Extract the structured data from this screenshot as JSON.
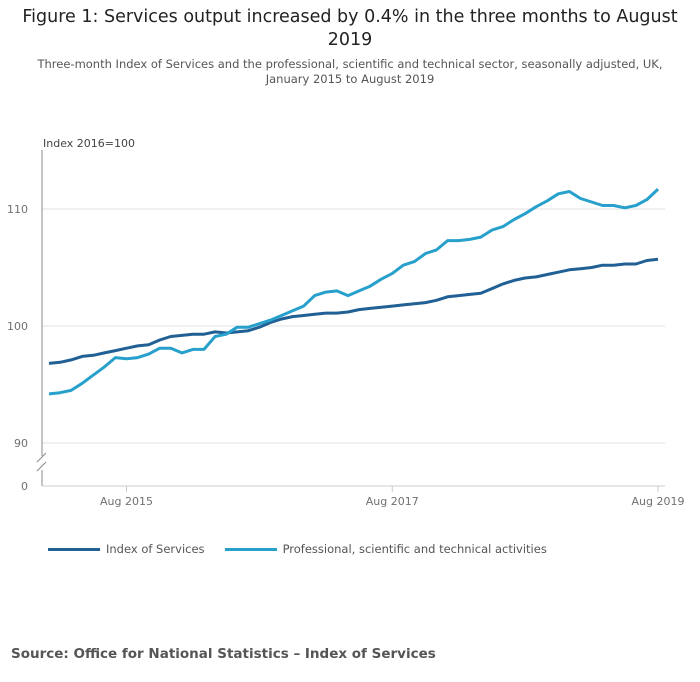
{
  "title": "Figure 1: Services output increased by 0.4% in the three months to August 2019",
  "subtitle": "Three-month Index of Services and the professional, scientific and technical sector, seasonally adjusted, UK, January 2015 to August 2019",
  "source": "Source: Office for National Statistics – Index of Services",
  "chart_data": {
    "type": "line",
    "ylabel": "Index 2016=100",
    "x_start": "Jan 2015",
    "x_end": "Aug 2019",
    "frequency": "monthly",
    "x_ticks": [
      "Aug 2015",
      "Aug 2017",
      "Aug 2019"
    ],
    "y_ticks": [
      0,
      90,
      100,
      110
    ],
    "ylim": [
      88,
      115
    ],
    "y_axis_break": true,
    "grid": true,
    "legend": "bottom-left",
    "series": [
      {
        "name": "Index of Services",
        "color": "#206095",
        "values": [
          96.8,
          96.9,
          97.1,
          97.4,
          97.5,
          97.7,
          97.9,
          98.1,
          98.3,
          98.4,
          98.8,
          99.1,
          99.2,
          99.3,
          99.3,
          99.5,
          99.4,
          99.5,
          99.6,
          99.9,
          100.3,
          100.6,
          100.8,
          100.9,
          101.0,
          101.1,
          101.1,
          101.2,
          101.4,
          101.5,
          101.6,
          101.7,
          101.8,
          101.9,
          102.0,
          102.2,
          102.5,
          102.6,
          102.7,
          102.8,
          103.2,
          103.6,
          103.9,
          104.1,
          104.2,
          104.4,
          104.6,
          104.8,
          104.9,
          105.0,
          105.2,
          105.2,
          105.3,
          105.3,
          105.6,
          105.7
        ]
      },
      {
        "name": "Professional, scientific and technical activities",
        "color": "#27a0cc",
        "values": [
          94.2,
          94.3,
          94.5,
          95.1,
          95.8,
          96.5,
          97.3,
          97.2,
          97.3,
          97.6,
          98.1,
          98.1,
          97.7,
          98.0,
          98.0,
          99.1,
          99.3,
          99.9,
          99.9,
          100.2,
          100.5,
          100.9,
          101.3,
          101.7,
          102.6,
          102.9,
          103.0,
          102.6,
          103.0,
          103.4,
          104.0,
          104.5,
          105.2,
          105.5,
          106.2,
          106.5,
          107.3,
          107.3,
          107.4,
          107.6,
          108.2,
          108.5,
          109.1,
          109.6,
          110.2,
          110.7,
          111.3,
          111.5,
          110.9,
          110.6,
          110.3,
          110.3,
          110.1,
          110.3,
          110.8,
          111.7
        ]
      }
    ]
  }
}
